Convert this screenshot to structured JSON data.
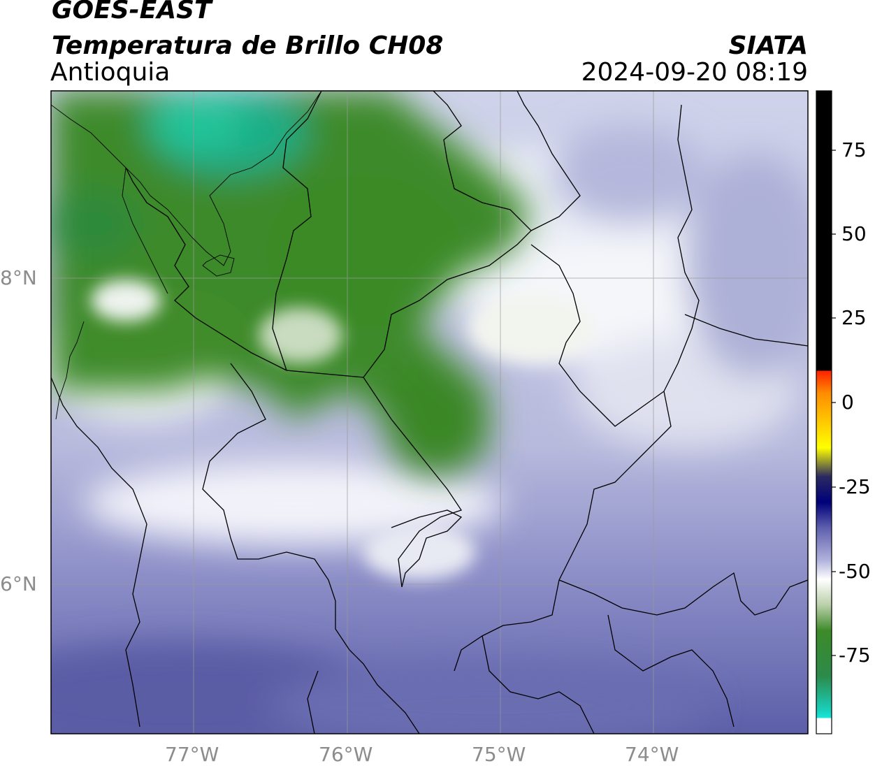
{
  "header": {
    "satellite": "GOES-EAST",
    "product": "Temperatura de Brillo CH08",
    "region": "Antioquia",
    "agency": "SIATA",
    "timestamp": "2024-09-20 08:19"
  },
  "axes": {
    "lon_labels": [
      "77°W",
      "76°W",
      "75°W",
      "74°W"
    ],
    "lat_labels": [
      "8°N",
      "6°N"
    ]
  },
  "colorbar": {
    "tick_labels": [
      "75",
      "50",
      "25",
      "0",
      "-25",
      "-50",
      "-75"
    ],
    "range": [
      -93,
      90
    ],
    "colors": {
      "warm": "#000000",
      "orange": "#ff8c00",
      "red": "#ff2000",
      "yellow": "#ffff00",
      "navy": "#00007a",
      "lavender": "#8a8ccb",
      "white": "#ffffff",
      "green": "#3d8a28",
      "teal": "#1fb58a",
      "cyan": "#16e8dc"
    }
  }
}
